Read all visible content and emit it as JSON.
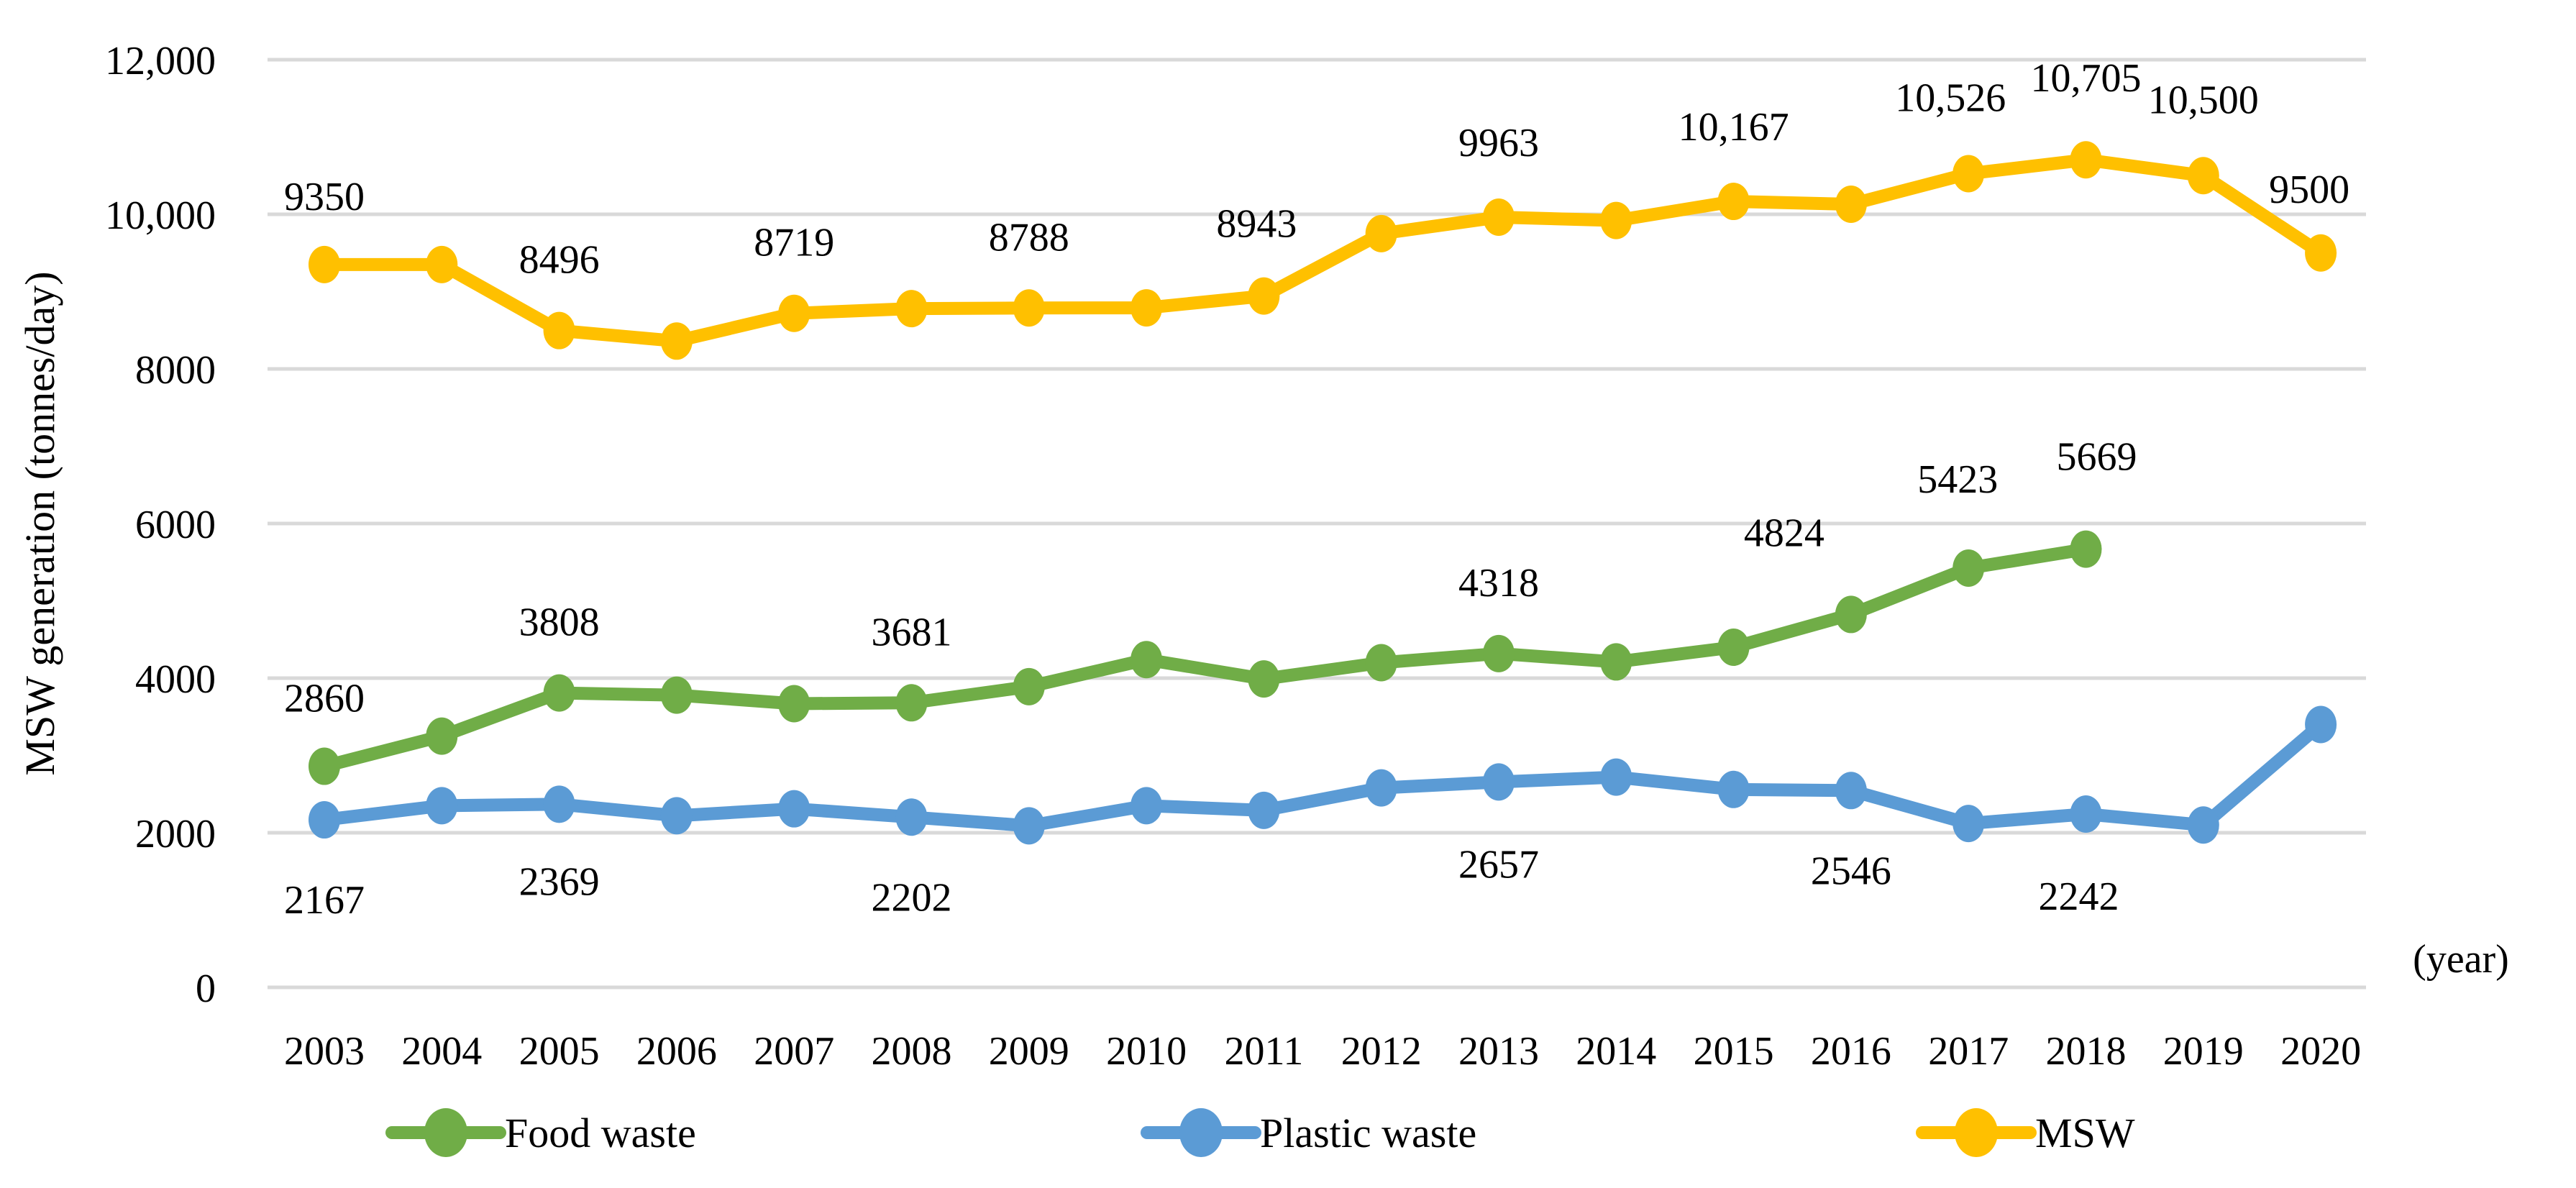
{
  "chart_data": {
    "type": "line",
    "title": "",
    "ylabel": "MSW generation (tonnes/day)",
    "xlabel": "(year)",
    "x": [
      2003,
      2004,
      2005,
      2006,
      2007,
      2008,
      2009,
      2010,
      2011,
      2012,
      2013,
      2014,
      2015,
      2016,
      2017,
      2018,
      2019,
      2020
    ],
    "x_labels": [
      "2003",
      "2004",
      "2005",
      "2006",
      "2007",
      "2008",
      "2009",
      "2010",
      "2011",
      "2012",
      "2013",
      "2014",
      "2015",
      "2016",
      "2017",
      "2018",
      "2019",
      "2020"
    ],
    "ylim": [
      0,
      12000
    ],
    "yticks": [
      {
        "v": 0,
        "label": "0"
      },
      {
        "v": 2000,
        "label": "2000"
      },
      {
        "v": 4000,
        "label": "4000"
      },
      {
        "v": 6000,
        "label": "6000"
      },
      {
        "v": 8000,
        "label": "8000"
      },
      {
        "v": 10000,
        "label": "10,000"
      },
      {
        "v": 12000,
        "label": "12,000"
      }
    ],
    "grid": true,
    "legend_position": "bottom",
    "gridline_color": "#D9D9D9",
    "series": [
      {
        "name": "Food waste",
        "color": "#70AD47",
        "values": [
          2860,
          3250,
          3808,
          3780,
          3670,
          3681,
          3890,
          4240,
          3990,
          4200,
          4318,
          4210,
          4400,
          4824,
          5423,
          5669,
          null,
          null
        ],
        "point_labels": [
          {
            "year": 2003,
            "text": "2860",
            "dx": 0,
            "dy": -76
          },
          {
            "year": 2005,
            "text": "3808",
            "dx": 0,
            "dy": -80
          },
          {
            "year": 2008,
            "text": "3681",
            "dx": 0,
            "dy": -80
          },
          {
            "year": 2013,
            "text": "4318",
            "dx": 0,
            "dy": -80
          },
          {
            "year": 2016,
            "text": "4824",
            "dx": -93,
            "dy": -95
          },
          {
            "year": 2017,
            "text": "5423",
            "dx": -15,
            "dy": -105
          },
          {
            "year": 2018,
            "text": "5669",
            "dx": 15,
            "dy": -110
          }
        ]
      },
      {
        "name": "Plastic waste",
        "color": "#5B9BD5",
        "values": [
          2167,
          2350,
          2369,
          2220,
          2310,
          2202,
          2090,
          2350,
          2290,
          2580,
          2657,
          2720,
          2560,
          2546,
          2120,
          2242,
          2100,
          3400
        ],
        "point_labels": [
          {
            "year": 2003,
            "text": "2167",
            "dx": 0,
            "dy": 130
          },
          {
            "year": 2005,
            "text": "2369",
            "dx": 0,
            "dy": 126
          },
          {
            "year": 2008,
            "text": "2202",
            "dx": 0,
            "dy": 130
          },
          {
            "year": 2013,
            "text": "2657",
            "dx": 0,
            "dy": 133
          },
          {
            "year": 2016,
            "text": "2546",
            "dx": 0,
            "dy": 130
          },
          {
            "year": 2018,
            "text": "2242",
            "dx": -10,
            "dy": 133
          }
        ]
      },
      {
        "name": "MSW",
        "color": "#FFC000",
        "values": [
          9350,
          9350,
          8496,
          8360,
          8719,
          8780,
          8788,
          8790,
          8943,
          9750,
          9963,
          9920,
          10167,
          10130,
          10526,
          10705,
          10500,
          9500
        ],
        "point_labels": [
          {
            "year": 2003,
            "text": "9350",
            "dx": 0,
            "dy": -76
          },
          {
            "year": 2005,
            "text": "8496",
            "dx": 0,
            "dy": -80
          },
          {
            "year": 2007,
            "text": "8719",
            "dx": 0,
            "dy": -80
          },
          {
            "year": 2009,
            "text": "8788",
            "dx": 0,
            "dy": -80
          },
          {
            "year": 2011,
            "text": "8943",
            "dx": -10,
            "dy": -82
          },
          {
            "year": 2013,
            "text": "9963",
            "dx": 0,
            "dy": -85
          },
          {
            "year": 2015,
            "text": "10,167",
            "dx": 0,
            "dy": -85
          },
          {
            "year": 2017,
            "text": "10,526",
            "dx": -25,
            "dy": -87
          },
          {
            "year": 2018,
            "text": "10,705",
            "dx": 0,
            "dy": -95
          },
          {
            "year": 2019,
            "text": "10,500",
            "dx": 0,
            "dy": -87
          },
          {
            "year": 2020,
            "text": "9500",
            "dx": -16,
            "dy": -70
          }
        ]
      }
    ]
  }
}
